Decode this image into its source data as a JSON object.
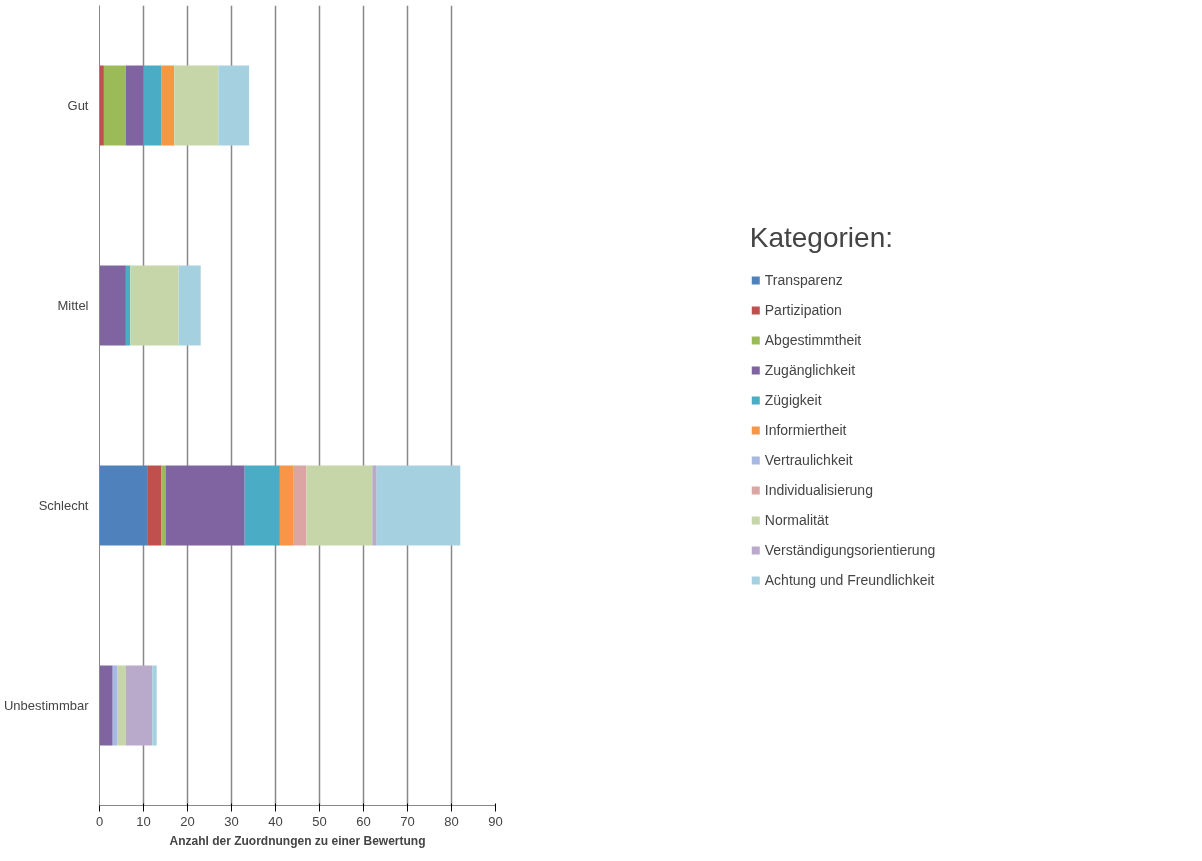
{
  "chart_data": {
    "type": "bar",
    "orientation": "horizontal",
    "stacked": true,
    "xlabel": "Anzahl der Zuordnungen zu einer Bewertung",
    "legend_title": "Kategorien:",
    "legend": "right",
    "grid": "x",
    "categories": [
      "Gut",
      "Mittel",
      "Schlecht",
      "Unbestimmbar"
    ],
    "xlim": [
      0,
      90
    ],
    "xticks": [
      0,
      10,
      20,
      30,
      40,
      50,
      60,
      70,
      80,
      90
    ],
    "series": [
      {
        "name": "Transparenz",
        "color": "#4f81bd",
        "values": [
          0,
          0,
          11,
          0
        ]
      },
      {
        "name": "Partizipation",
        "color": "#c0504d",
        "values": [
          1,
          0,
          3,
          0
        ]
      },
      {
        "name": "Abgestimmtheit",
        "color": "#9bbb59",
        "values": [
          5,
          0,
          1,
          0
        ]
      },
      {
        "name": "Zugänglichkeit",
        "color": "#8064a2",
        "values": [
          4,
          6,
          18,
          3
        ]
      },
      {
        "name": "Zügigkeit",
        "color": "#4bacc6",
        "values": [
          4,
          1,
          8,
          0
        ]
      },
      {
        "name": "Informiertheit",
        "color": "#f79646",
        "values": [
          3,
          0,
          3,
          0
        ]
      },
      {
        "name": "Vertraulichkeit",
        "color": "#a7b9e0",
        "values": [
          0,
          0,
          0,
          1
        ]
      },
      {
        "name": "Individualisierung",
        "color": "#dba5a4",
        "values": [
          0,
          0,
          3,
          0
        ]
      },
      {
        "name": "Normalität",
        "color": "#c6d6a8",
        "values": [
          10,
          11,
          15,
          2
        ]
      },
      {
        "name": "Verständigungsorientierung",
        "color": "#b9aacc",
        "values": [
          0,
          0,
          1,
          6
        ]
      },
      {
        "name": "Achtung und Freundlichkeit",
        "color": "#a5d0df",
        "values": [
          7,
          5,
          19,
          1
        ]
      }
    ]
  }
}
